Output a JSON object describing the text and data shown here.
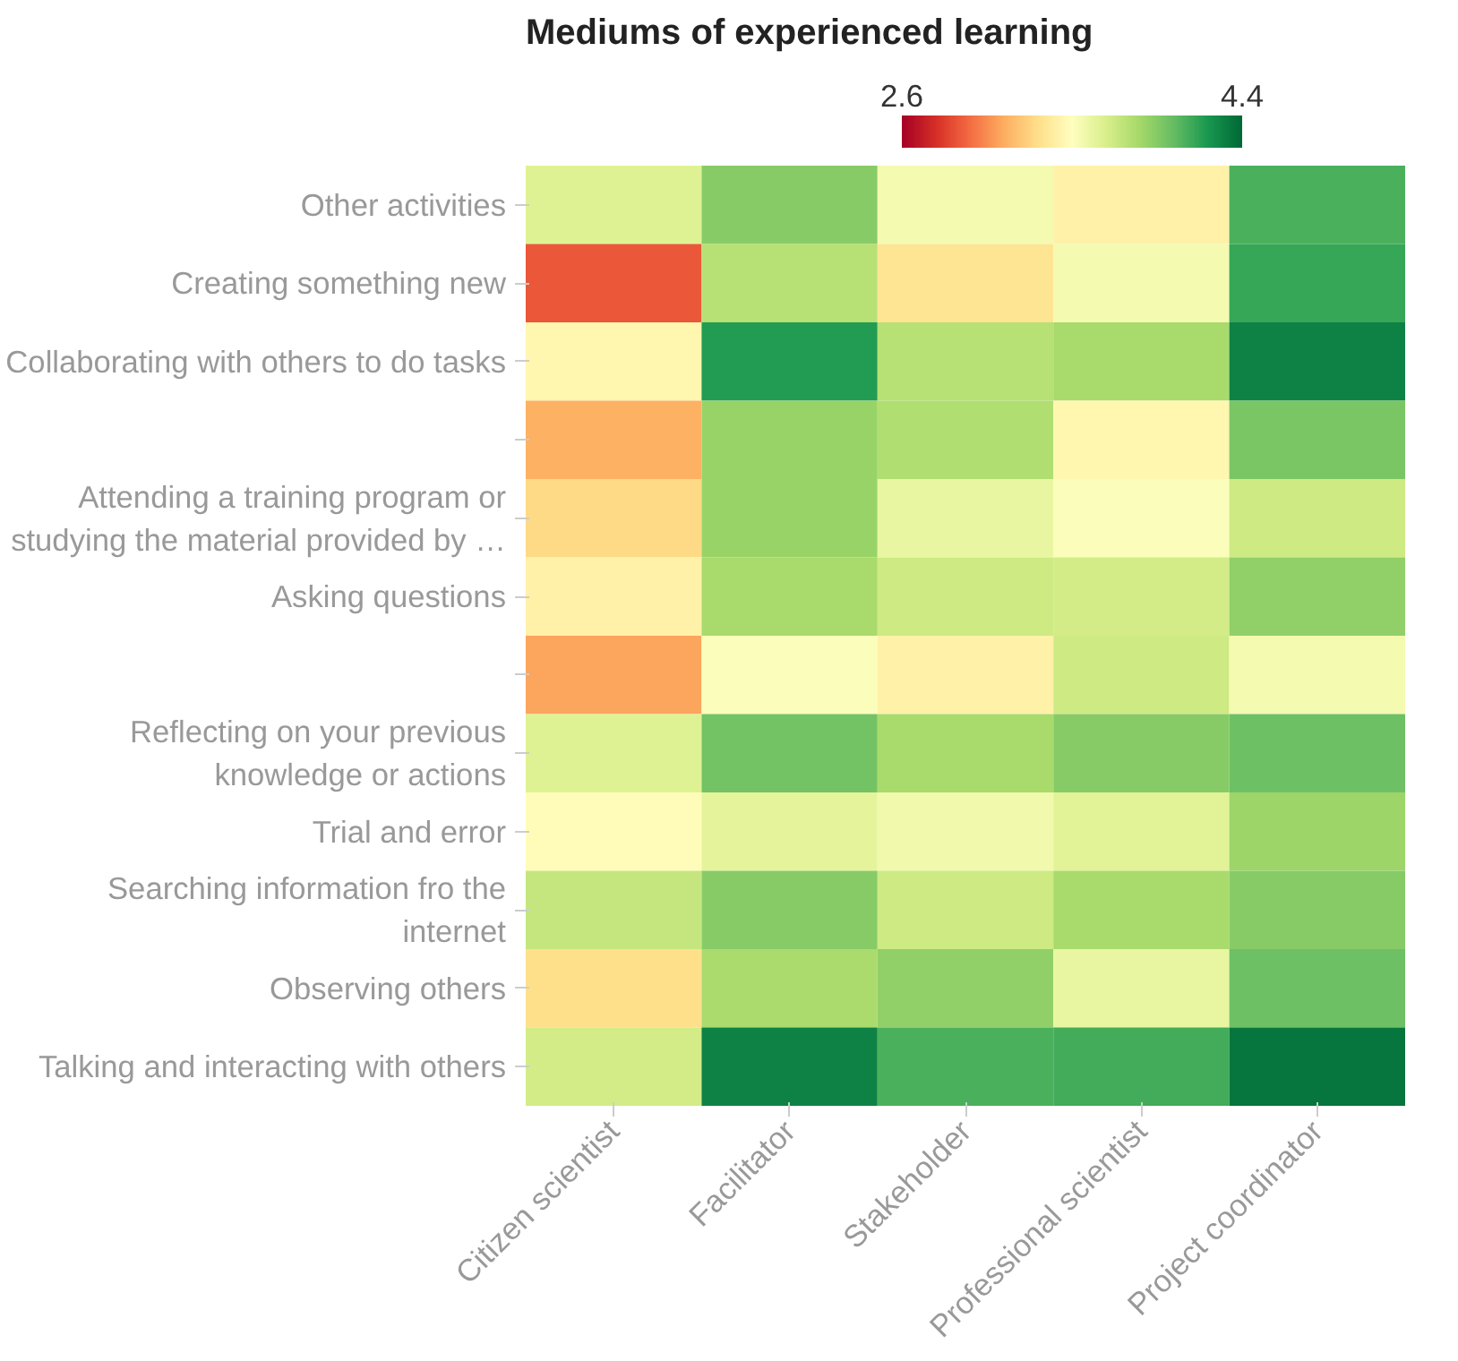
{
  "chart_data": {
    "type": "heatmap",
    "title": "Mediums of experienced learning",
    "categories": [
      "Citizen scientist",
      "Facilitator",
      "Stakeholder",
      "Professional scientist",
      "Project coordinator"
    ],
    "y_categories": [
      "Other activities",
      "Creating something new",
      "Collaborating with others to do tasks",
      null,
      "Attending a training program or studying the material provided by …",
      "Asking questions",
      null,
      "Reflecting on your previous knowledge or actions",
      "Trial and error",
      "Searching information fro the internet",
      "Observing others",
      "Talking and interacting with others"
    ],
    "cells": [
      [
        3.65,
        3.95,
        3.55,
        3.42,
        4.1
      ],
      [
        2.9,
        3.8,
        3.35,
        3.55,
        4.15
      ],
      [
        3.45,
        4.2,
        3.8,
        3.85,
        4.3
      ],
      [
        3.15,
        3.9,
        3.82,
        3.45,
        3.98
      ],
      [
        3.3,
        3.9,
        3.6,
        3.52,
        3.72
      ],
      [
        3.42,
        3.85,
        3.72,
        3.7,
        3.92
      ],
      [
        3.12,
        3.52,
        3.42,
        3.72,
        3.55
      ],
      [
        3.65,
        4.0,
        3.85,
        3.95,
        4.02
      ],
      [
        3.48,
        3.62,
        3.57,
        3.64,
        3.88
      ],
      [
        3.75,
        3.95,
        3.72,
        3.85,
        3.95
      ],
      [
        3.32,
        3.84,
        3.92,
        3.6,
        4.02
      ],
      [
        3.7,
        4.3,
        4.1,
        4.12,
        4.35
      ]
    ],
    "clim": [
      2.6,
      4.4
    ],
    "cticks": [
      2.6,
      4.4
    ]
  }
}
